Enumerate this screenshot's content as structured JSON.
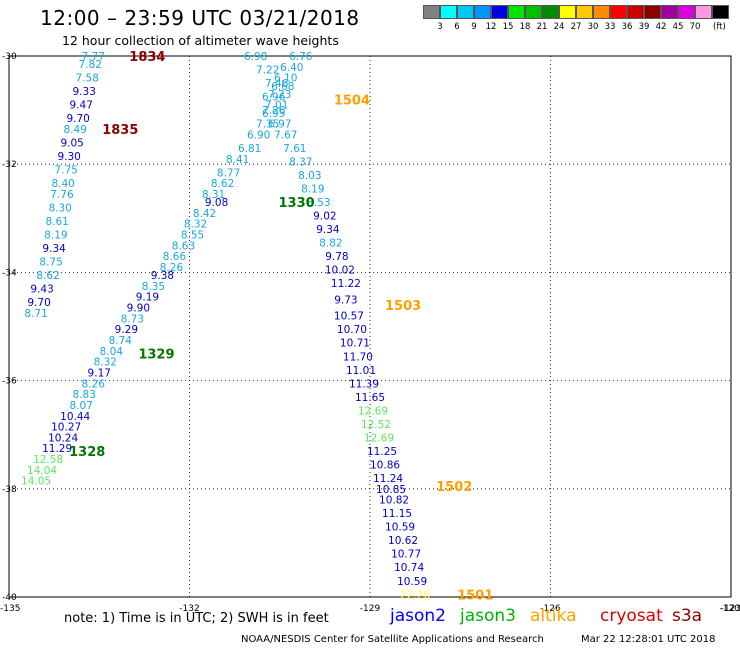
{
  "header": {
    "title": "12:00 – 23:59 UTC 03/21/2018",
    "subtitle": "12 hour collection of altimeter wave heights"
  },
  "legend": {
    "unit": "(ft)",
    "items": [
      {
        "label": "",
        "color": "#808080"
      },
      {
        "label": "3",
        "color": "#00ffff"
      },
      {
        "label": "6",
        "color": "#00c8f0"
      },
      {
        "label": "9",
        "color": "#0096ff"
      },
      {
        "label": "12",
        "color": "#0000e6"
      },
      {
        "label": "15",
        "color": "#00e600"
      },
      {
        "label": "18",
        "color": "#00be00"
      },
      {
        "label": "21",
        "color": "#008c00"
      },
      {
        "label": "24",
        "color": "#ffff00"
      },
      {
        "label": "27",
        "color": "#ffc800"
      },
      {
        "label": "30",
        "color": "#ff8c00"
      },
      {
        "label": "33",
        "color": "#ff0000"
      },
      {
        "label": "36",
        "color": "#c80000"
      },
      {
        "label": "39",
        "color": "#8c0000"
      },
      {
        "label": "42",
        "color": "#a000a0"
      },
      {
        "label": "45",
        "color": "#dc00dc"
      },
      {
        "label": "70",
        "color": "#ff96e6"
      },
      {
        "label": "",
        "color": "#000000"
      }
    ]
  },
  "map": {
    "lat_range": [
      -40,
      -30
    ],
    "lon_range": [
      -135,
      -123
    ],
    "lat_ticks": [
      -30,
      -32,
      -34,
      -36,
      -38,
      -40
    ],
    "lon_ticks": [
      -135,
      -132,
      -129,
      -126,
      -123,
      -120
    ],
    "grid_lats": [
      -32,
      -34,
      -36,
      -38
    ],
    "grid_lons": [
      -132,
      -129,
      -126,
      -123
    ],
    "grid": true
  },
  "colors": {
    "c6": "#1aa6e0",
    "c9": "#0000c8",
    "c12": "#5ee65e",
    "c21": "#ffff5a",
    "jason2": "#0000ff",
    "jason3": "#00b400",
    "altika": "#ffa000",
    "cryosat": "#dc0000",
    "s3a": "#8c0000",
    "t1834": "#8c0000",
    "t1835": "#8c0000",
    "t1504": "#ffa000",
    "t1330": "#007800",
    "t1503": "#ffa000",
    "t1329": "#007800",
    "t1328": "#007800",
    "t1502": "#ffa000",
    "t1501": "#ffa000"
  },
  "track_labels": [
    {
      "text": "1834",
      "lon": -132.7,
      "lat": -30.0,
      "c": "t1834"
    },
    {
      "text": "1835",
      "lon": -133.15,
      "lat": -31.35,
      "c": "t1835"
    },
    {
      "text": "1504",
      "lon": -129.3,
      "lat": -30.8,
      "c": "t1504"
    },
    {
      "text": "1330",
      "lon": -130.22,
      "lat": -32.7,
      "c": "t1330"
    },
    {
      "text": "1503",
      "lon": -128.45,
      "lat": -34.6,
      "c": "t1503"
    },
    {
      "text": "1329",
      "lon": -132.55,
      "lat": -35.5,
      "c": "t1329"
    },
    {
      "text": "1328",
      "lon": -133.7,
      "lat": -37.3,
      "c": "t1328"
    },
    {
      "text": "1502",
      "lon": -127.6,
      "lat": -37.95,
      "c": "t1502"
    },
    {
      "text": "1501",
      "lon": -127.25,
      "lat": -39.95,
      "c": "t1501"
    }
  ],
  "tracks": [
    {
      "name": "1834/1835",
      "points": [
        [
          "7.77",
          -133.6,
          -30.0,
          "c6"
        ],
        [
          "7.82",
          -133.65,
          -30.15,
          "c6"
        ],
        [
          "7.58",
          -133.7,
          -30.4,
          "c6"
        ],
        [
          "9.33",
          -133.75,
          -30.65,
          "c9"
        ],
        [
          "9.47",
          -133.8,
          -30.9,
          "c9"
        ],
        [
          "9.70",
          -133.85,
          -31.15,
          "c9"
        ],
        [
          "8.49",
          -133.9,
          -31.35,
          "c6"
        ],
        [
          "9.05",
          -133.95,
          -31.6,
          "c9"
        ],
        [
          "9.30",
          -134.0,
          -31.85,
          "c9"
        ],
        [
          "7.75",
          -134.05,
          -32.1,
          "c6"
        ],
        [
          "8.40",
          -134.1,
          -32.35,
          "c6"
        ],
        [
          "7.76",
          -134.12,
          -32.55,
          "c6"
        ],
        [
          "8.30",
          -134.15,
          -32.8,
          "c6"
        ],
        [
          "8.61",
          -134.2,
          -33.05,
          "c6"
        ],
        [
          "8.19",
          -134.22,
          -33.3,
          "c6"
        ],
        [
          "9.34",
          -134.25,
          -33.55,
          "c9"
        ],
        [
          "8.75",
          -134.3,
          -33.8,
          "c6"
        ],
        [
          "8.62",
          -134.35,
          -34.05,
          "c6"
        ],
        [
          "9.43",
          -134.45,
          -34.3,
          "c9"
        ],
        [
          "9.70",
          -134.5,
          -34.55,
          "c9"
        ],
        [
          "8.71",
          -134.55,
          -34.75,
          "c6"
        ]
      ]
    },
    {
      "name": "1330/1329/1328",
      "points": [
        [
          "6.98",
          -130.9,
          -30.0,
          "c6"
        ],
        [
          "7.22",
          -130.7,
          -30.25,
          "c6"
        ],
        [
          "7.46",
          -130.55,
          -30.5,
          "c6"
        ],
        [
          "6.96",
          -130.6,
          -30.75,
          "c6"
        ],
        [
          "7.26",
          -130.6,
          -31.0,
          "c6"
        ],
        [
          "7.35",
          -130.7,
          -31.25,
          "c6"
        ],
        [
          "6.90",
          -130.85,
          -31.45,
          "c6"
        ],
        [
          "6.81",
          -131.0,
          -31.7,
          "c6"
        ],
        [
          "8.41",
          -131.2,
          -31.9,
          "c6"
        ],
        [
          "8.77",
          -131.35,
          -32.15,
          "c6"
        ],
        [
          "8.62",
          -131.45,
          -32.35,
          "c6"
        ],
        [
          "8.31",
          -131.6,
          -32.55,
          "c6"
        ],
        [
          "9.08",
          -131.55,
          -32.7,
          "c9"
        ],
        [
          "8.42",
          -131.75,
          -32.9,
          "c6"
        ],
        [
          "8.32",
          -131.9,
          -33.1,
          "c6"
        ],
        [
          "8.55",
          -131.95,
          -33.3,
          "c6"
        ],
        [
          "8.63",
          -132.1,
          -33.5,
          "c6"
        ],
        [
          "8.66",
          -132.25,
          -33.7,
          "c6"
        ],
        [
          "8.26",
          -132.3,
          -33.9,
          "c6"
        ],
        [
          "9.38",
          -132.45,
          -34.05,
          "c9"
        ],
        [
          "8.35",
          -132.6,
          -34.25,
          "c6"
        ],
        [
          "9.19",
          -132.7,
          -34.45,
          "c9"
        ],
        [
          "9.90",
          -132.85,
          -34.65,
          "c9"
        ],
        [
          "8.73",
          -132.95,
          -34.85,
          "c6"
        ],
        [
          "9.29",
          -133.05,
          -35.05,
          "c9"
        ],
        [
          "8.74",
          -133.15,
          -35.25,
          "c6"
        ],
        [
          "8.04",
          -133.3,
          -35.45,
          "c6"
        ],
        [
          "8.32",
          -133.4,
          -35.65,
          "c6"
        ],
        [
          "9.17",
          -133.5,
          -35.85,
          "c9"
        ],
        [
          "8.26",
          -133.6,
          -36.05,
          "c6"
        ],
        [
          "8.83",
          -133.75,
          -36.25,
          "c6"
        ],
        [
          "8.07",
          -133.8,
          -36.45,
          "c6"
        ],
        [
          "10.44",
          -133.9,
          -36.65,
          "c9"
        ],
        [
          "10.27",
          -134.05,
          -36.85,
          "c9"
        ],
        [
          "10.24",
          -134.1,
          -37.05,
          "c9"
        ],
        [
          "11.29",
          -134.2,
          -37.25,
          "c9"
        ],
        [
          "12.58",
          -134.35,
          -37.45,
          "c12"
        ],
        [
          "14.04",
          -134.45,
          -37.65,
          "c12"
        ],
        [
          "14.05",
          -134.55,
          -37.85,
          "c12"
        ]
      ]
    },
    {
      "name": "1504/1503/1502/1501",
      "points": [
        [
          "6.76",
          -130.15,
          -30.0,
          "c6"
        ],
        [
          "6.40",
          -130.3,
          -30.2,
          "c6"
        ],
        [
          "6.10",
          -130.4,
          -30.4,
          "c6"
        ],
        [
          "6.68",
          -130.45,
          -30.55,
          "c6"
        ],
        [
          "7.23",
          -130.5,
          -30.7,
          "c6"
        ],
        [
          "7.01",
          -130.55,
          -30.9,
          "c6"
        ],
        [
          "6.95",
          -130.6,
          -31.05,
          "c6"
        ],
        [
          "6.97",
          -130.5,
          -31.25,
          "c6"
        ],
        [
          "7.67",
          -130.4,
          -31.45,
          "c6"
        ],
        [
          "7.61",
          -130.25,
          -31.7,
          "c6"
        ],
        [
          "8.37",
          -130.15,
          -31.95,
          "c6"
        ],
        [
          "8.03",
          -130.0,
          -32.2,
          "c6"
        ],
        [
          "8.19",
          -129.95,
          -32.45,
          "c6"
        ],
        [
          "8.53",
          -129.85,
          -32.7,
          "c6"
        ],
        [
          "9.02",
          -129.75,
          -32.95,
          "c9"
        ],
        [
          "9.34",
          -129.7,
          -33.2,
          "c9"
        ],
        [
          "8.82",
          -129.65,
          -33.45,
          "c6"
        ],
        [
          "9.78",
          -129.55,
          -33.7,
          "c9"
        ],
        [
          "10.02",
          -129.5,
          -33.95,
          "c9"
        ],
        [
          "11.22",
          -129.4,
          -34.2,
          "c9"
        ],
        [
          "9.73",
          -129.4,
          -34.5,
          "c9"
        ],
        [
          "10.57",
          -129.35,
          -34.8,
          "c9"
        ],
        [
          "10.70",
          -129.3,
          -35.05,
          "c9"
        ],
        [
          "10.71",
          -129.25,
          -35.3,
          "c9"
        ],
        [
          "11.70",
          -129.2,
          -35.55,
          "c9"
        ],
        [
          "11.01",
          -129.15,
          -35.8,
          "c9"
        ],
        [
          "11.39",
          -129.1,
          -36.05,
          "c9"
        ],
        [
          "11.65",
          -129.0,
          -36.3,
          "c9"
        ],
        [
          "12.69",
          -128.95,
          -36.55,
          "c12"
        ],
        [
          "12.52",
          -128.9,
          -36.8,
          "c12"
        ],
        [
          "12.69",
          -128.85,
          -37.05,
          "c12"
        ],
        [
          "11.25",
          -128.8,
          -37.3,
          "c9"
        ],
        [
          "10.86",
          -128.75,
          -37.55,
          "c9"
        ],
        [
          "11.24",
          -128.7,
          -37.8,
          "c9"
        ],
        [
          "10.85",
          -128.65,
          -38.0,
          "c9"
        ],
        [
          "10.82",
          -128.6,
          -38.2,
          "c9"
        ],
        [
          "11.15",
          -128.55,
          -38.45,
          "c9"
        ],
        [
          "10.59",
          -128.5,
          -38.7,
          "c9"
        ],
        [
          "10.62",
          -128.45,
          -38.95,
          "c9"
        ],
        [
          "10.77",
          -128.4,
          -39.2,
          "c9"
        ],
        [
          "10.74",
          -128.35,
          -39.45,
          "c9"
        ],
        [
          "10.59",
          -128.3,
          -39.7,
          "c9"
        ],
        [
          "22.26",
          -128.25,
          -39.95,
          "c21"
        ]
      ]
    }
  ],
  "footer": {
    "note": "note:  1) Time is in UTC;  2) SWH is in feet",
    "satellites": [
      {
        "name": "jason2",
        "c": "jason2",
        "left": 390
      },
      {
        "name": "jason3",
        "c": "jason3",
        "left": 460
      },
      {
        "name": "altika",
        "c": "altika",
        "left": 530
      },
      {
        "name": "cryosat",
        "c": "cryosat",
        "left": 600
      },
      {
        "name": "s3a",
        "c": "s3a",
        "left": 672
      }
    ],
    "credit": "NOAA/NESDIS Center for Satellite Applications and Research",
    "timestamp": "Mar 22 12:28:01 UTC 2018"
  }
}
